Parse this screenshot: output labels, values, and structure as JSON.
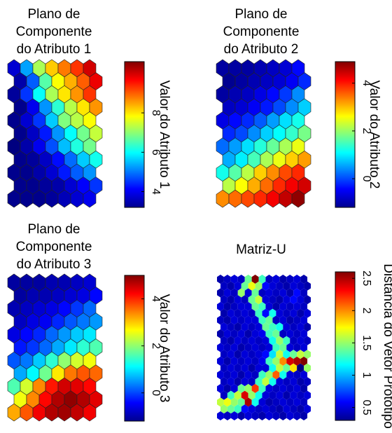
{
  "chart_data": [
    {
      "type": "heatmap",
      "title_lines": [
        "Plano de",
        "Componente",
        "do Atributo 1"
      ],
      "colorbar_label": "Valor do Atributo 1",
      "clim": [
        3.2,
        10.6
      ],
      "colorbar_ticks": [
        4,
        6,
        8
      ],
      "grid": {
        "rows": 11,
        "cols": 7
      },
      "values": [
        [
          3.8,
          5.3,
          7.2,
          8.2,
          8.8,
          9.3,
          10.0
        ],
        [
          3.5,
          4.8,
          6.6,
          7.8,
          8.4,
          9.0,
          9.8
        ],
        [
          3.4,
          4.5,
          6.0,
          7.2,
          8.0,
          8.6,
          9.3
        ],
        [
          3.3,
          4.0,
          5.2,
          6.3,
          7.3,
          8.0,
          8.6
        ],
        [
          3.3,
          3.8,
          4.5,
          5.6,
          6.9,
          7.3,
          7.8
        ],
        [
          3.3,
          3.7,
          4.3,
          5.2,
          6.0,
          6.8,
          7.4
        ],
        [
          3.2,
          3.5,
          4.0,
          4.7,
          5.5,
          6.2,
          6.8
        ],
        [
          3.3,
          3.4,
          3.7,
          4.2,
          4.9,
          5.6,
          6.1
        ],
        [
          3.3,
          3.3,
          3.5,
          3.8,
          4.3,
          4.8,
          5.2
        ],
        [
          3.3,
          3.3,
          3.4,
          3.5,
          3.8,
          4.1,
          4.5
        ],
        [
          3.3,
          3.3,
          3.3,
          3.4,
          3.6,
          3.8,
          4.0
        ]
      ]
    },
    {
      "type": "heatmap",
      "title_lines": [
        "Plano de",
        "Componente",
        "do Atributo 2"
      ],
      "colorbar_label": "Valor do Atributo 2",
      "clim": [
        -1.2,
        4.9
      ],
      "colorbar_ticks": [
        0,
        2,
        4
      ],
      "grid": {
        "rows": 11,
        "cols": 7
      },
      "values": [
        [
          -1.0,
          -1.0,
          -1.0,
          -0.9,
          -0.8,
          -0.7,
          -0.4
        ],
        [
          -1.1,
          -1.0,
          -0.9,
          -0.8,
          -0.7,
          -0.5,
          -0.2
        ],
        [
          -1.0,
          -0.9,
          -0.8,
          -0.6,
          -0.4,
          -0.1,
          0.4
        ],
        [
          -0.8,
          -0.7,
          -0.5,
          -0.3,
          0.0,
          0.4,
          0.8
        ],
        [
          -0.6,
          -0.4,
          -0.2,
          0.1,
          0.5,
          0.9,
          1.2
        ],
        [
          -0.2,
          0.0,
          0.4,
          0.8,
          1.1,
          1.4,
          1.8
        ],
        [
          0.2,
          0.5,
          0.9,
          1.3,
          1.7,
          2.1,
          2.5
        ],
        [
          0.6,
          1.0,
          1.5,
          2.1,
          2.5,
          2.9,
          3.2
        ],
        [
          1.2,
          1.6,
          2.2,
          2.9,
          3.3,
          3.7,
          3.9
        ],
        [
          2.2,
          2.6,
          3.1,
          3.5,
          3.9,
          4.2,
          4.4
        ],
        [
          3.3,
          3.5,
          3.7,
          3.9,
          4.2,
          4.5,
          4.8
        ]
      ]
    },
    {
      "type": "heatmap",
      "title_lines": [
        "Plano de",
        "Componente",
        "do Atributo 3"
      ],
      "colorbar_label": "Valor do Atributo 3",
      "clim": [
        -1.2,
        5.0
      ],
      "colorbar_ticks": [
        0,
        2,
        4
      ],
      "grid": {
        "rows": 11,
        "cols": 7
      },
      "values": [
        [
          -1.0,
          -1.0,
          -1.0,
          -0.9,
          -0.9,
          -0.8,
          -0.7
        ],
        [
          -1.0,
          -0.9,
          -0.9,
          -0.8,
          -0.7,
          -0.6,
          -0.4
        ],
        [
          -0.9,
          -0.8,
          -0.7,
          -0.6,
          -0.4,
          -0.1,
          0.2
        ],
        [
          -0.8,
          -0.6,
          -0.5,
          -0.2,
          0.1,
          0.3,
          0.5
        ],
        [
          -0.6,
          -0.4,
          -0.2,
          0.2,
          0.5,
          0.8,
          1.0
        ],
        [
          -0.3,
          -0.1,
          0.2,
          0.6,
          1.0,
          1.4,
          1.6
        ],
        [
          0.1,
          0.3,
          0.8,
          1.4,
          2.0,
          2.4,
          2.6
        ],
        [
          0.6,
          1.1,
          1.8,
          2.8,
          3.5,
          3.7,
          3.6
        ],
        [
          1.6,
          2.4,
          3.4,
          4.1,
          4.5,
          4.4,
          4.2
        ],
        [
          2.6,
          3.4,
          4.2,
          4.7,
          4.9,
          4.7,
          4.4
        ],
        [
          3.2,
          3.7,
          4.3,
          4.7,
          4.8,
          4.6,
          4.3
        ]
      ]
    },
    {
      "type": "heatmap",
      "title_lines": [
        "Matriz-U"
      ],
      "colorbar_label": "Distância do Vetor Protótipo",
      "clim": [
        0.3,
        2.6
      ],
      "colorbar_ticks": [
        0.5,
        1,
        1.5,
        2,
        2.5
      ],
      "grid": {
        "rows": 21,
        "cols": 13
      },
      "values": [
        [
          0.4,
          0.45,
          0.5,
          0.45,
          1.4,
          2.6,
          1.3,
          0.45,
          0.5,
          0.4,
          0.45,
          0.5,
          0.4
        ],
        [
          0.45,
          0.4,
          0.5,
          1.4,
          1.7,
          1.5,
          0.6,
          0.5,
          0.45,
          0.4,
          0.5,
          0.45,
          0.4
        ],
        [
          0.4,
          0.5,
          0.45,
          1.5,
          0.5,
          1.4,
          0.45,
          0.5,
          0.45,
          0.5,
          0.4,
          0.6,
          0.45
        ],
        [
          0.45,
          0.4,
          0.5,
          0.45,
          1.4,
          1.6,
          0.5,
          0.45,
          0.4,
          0.5,
          0.6,
          0.5,
          0.4
        ],
        [
          0.5,
          0.4,
          0.45,
          0.5,
          0.5,
          1.4,
          1.3,
          0.5,
          0.4,
          0.5,
          0.45,
          0.5,
          0.45
        ],
        [
          0.4,
          0.5,
          0.45,
          0.5,
          0.45,
          1.3,
          0.6,
          1.2,
          0.5,
          0.45,
          0.5,
          0.4,
          0.5
        ],
        [
          0.45,
          0.4,
          0.5,
          0.45,
          0.5,
          0.5,
          1.3,
          1.4,
          0.45,
          0.5,
          0.4,
          0.45,
          0.5
        ],
        [
          0.5,
          0.45,
          0.4,
          0.5,
          0.45,
          0.5,
          1.4,
          1.3,
          1.2,
          0.5,
          0.45,
          0.5,
          0.4
        ],
        [
          0.4,
          0.5,
          0.45,
          0.5,
          0.4,
          0.5,
          0.55,
          1.3,
          1.4,
          0.45,
          0.5,
          0.45,
          0.5
        ],
        [
          0.45,
          0.4,
          0.5,
          0.45,
          0.5,
          0.45,
          0.5,
          1.2,
          1.5,
          1.3,
          0.45,
          0.5,
          0.45
        ],
        [
          0.5,
          0.45,
          0.5,
          0.4,
          0.45,
          0.5,
          0.45,
          0.5,
          1.3,
          1.4,
          0.5,
          0.45,
          0.5
        ],
        [
          0.45,
          0.5,
          0.4,
          0.5,
          0.45,
          0.5,
          0.6,
          1.1,
          1.6,
          1.2,
          1.4,
          1.6,
          1.5
        ],
        [
          0.5,
          0.4,
          0.5,
          0.45,
          0.5,
          0.45,
          0.55,
          1.3,
          1.5,
          2.0,
          2.4,
          2.5,
          2.6
        ],
        [
          0.45,
          0.5,
          0.45,
          0.5,
          0.4,
          0.5,
          0.5,
          1.2,
          1.6,
          1.4,
          1.8,
          0.3,
          1.5
        ],
        [
          0.5,
          0.45,
          0.5,
          0.4,
          0.5,
          0.45,
          1.3,
          1.5,
          2.1,
          1.2,
          0.5,
          0.45,
          0.5
        ],
        [
          0.45,
          0.5,
          0.4,
          0.5,
          0.45,
          1.3,
          1.6,
          1.2,
          0.5,
          0.45,
          0.5,
          0.4,
          0.45
        ],
        [
          0.5,
          0.4,
          0.5,
          1.4,
          1.5,
          2.2,
          1.3,
          0.5,
          0.45,
          0.5,
          0.45,
          0.5,
          0.4
        ],
        [
          0.45,
          1.3,
          1.6,
          2.4,
          1.5,
          1.2,
          0.5,
          0.45,
          0.5,
          0.4,
          0.5,
          0.45,
          0.5
        ],
        [
          1.6,
          1.7,
          1.5,
          1.4,
          2.5,
          1.2,
          0.5,
          0.4,
          0.45,
          0.5,
          0.45,
          0.5,
          0.45
        ],
        [
          1.5,
          1.4,
          1.3,
          0.6,
          0.5,
          0.45,
          0.5,
          0.45,
          0.4,
          0.5,
          0.45,
          0.4,
          0.5
        ],
        [
          0.5,
          0.45,
          0.5,
          0.4,
          0.5,
          0.45,
          0.4,
          0.5,
          0.45,
          0.4,
          0.5,
          0.45,
          0.4
        ]
      ]
    }
  ]
}
